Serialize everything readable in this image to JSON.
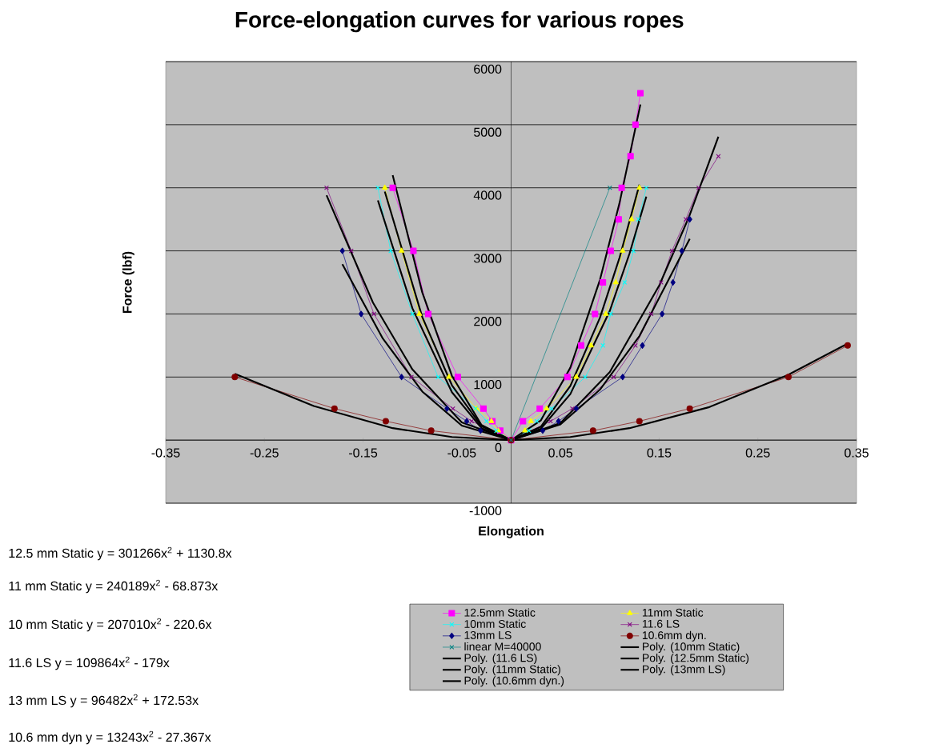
{
  "chart_data": {
    "type": "line",
    "title": "Force-elongation curves for various ropes",
    "xlabel": "Elongation",
    "ylabel": "Force (lbf)",
    "xlim": [
      -0.35,
      0.35
    ],
    "xticks": [
      -0.35,
      -0.25,
      -0.15,
      -0.05,
      0.05,
      0.15,
      0.25,
      0.35
    ],
    "ylim": [
      -1000,
      6000
    ],
    "yticks": [
      -1000,
      0,
      1000,
      2000,
      3000,
      4000,
      5000,
      6000
    ],
    "grid": "y",
    "legend": "bottom",
    "series": [
      {
        "name": "12.5mm Static",
        "color": "#ff00ff",
        "marker": "square",
        "x": [
          -0.12,
          -0.099,
          -0.084,
          -0.054,
          -0.028,
          -0.019,
          -0.011,
          0,
          0.012,
          0.029,
          0.057,
          0.071,
          0.085,
          0.093,
          0.101,
          0.109,
          0.112,
          0.121,
          0.126,
          0.131
        ],
        "values": [
          4000,
          3000,
          2000,
          1000,
          500,
          300,
          150,
          0,
          300,
          500,
          1000,
          1500,
          2000,
          2500,
          3000,
          3500,
          4000,
          4500,
          5000,
          5500
        ]
      },
      {
        "name": "11mm Static",
        "color": "#ffff00",
        "marker": "triangle",
        "x": [
          -0.128,
          -0.111,
          -0.093,
          -0.063,
          -0.035,
          -0.02,
          -0.013,
          0,
          0.014,
          0.02,
          0.036,
          0.066,
          0.081,
          0.096,
          0.106,
          0.113,
          0.122,
          0.13
        ],
        "values": [
          4000,
          3000,
          2000,
          1000,
          500,
          300,
          150,
          0,
          150,
          300,
          500,
          1000,
          1500,
          2000,
          2500,
          3000,
          3500,
          4000
        ]
      },
      {
        "name": "10mm Static",
        "color": "#00ffff",
        "marker": "cross",
        "x": [
          -0.135,
          -0.122,
          -0.1,
          -0.074,
          -0.036,
          -0.025,
          -0.015,
          0,
          0.018,
          0.026,
          0.041,
          0.075,
          0.093,
          0.101,
          0.115,
          0.124,
          0.129,
          0.137
        ],
        "values": [
          4000,
          3000,
          2000,
          1000,
          500,
          300,
          150,
          0,
          150,
          300,
          500,
          1000,
          1500,
          2000,
          2500,
          3000,
          3500,
          4000
        ]
      },
      {
        "name": "11.6 LS",
        "color": "#800080",
        "marker": "cross",
        "x": [
          -0.187,
          -0.162,
          -0.139,
          -0.101,
          -0.059,
          -0.04,
          0,
          0.04,
          0.062,
          0.104,
          0.126,
          0.142,
          0.152,
          0.163,
          0.177,
          0.19,
          0.21
        ],
        "values": [
          4000,
          3000,
          2000,
          1000,
          500,
          300,
          0,
          300,
          500,
          1000,
          1500,
          2000,
          2500,
          3000,
          3500,
          4000,
          4500
        ]
      },
      {
        "name": "13mm LS",
        "color": "#000080",
        "marker": "diamond",
        "x": [
          -0.171,
          -0.152,
          -0.111,
          -0.065,
          -0.045,
          -0.031,
          0,
          0.032,
          0.048,
          0.066,
          0.113,
          0.133,
          0.153,
          0.164,
          0.173,
          0.181
        ],
        "values": [
          3000,
          2000,
          1000,
          500,
          300,
          150,
          0,
          150,
          300,
          500,
          1000,
          1500,
          2000,
          2500,
          3000,
          3500
        ]
      },
      {
        "name": "10.6mm dyn.",
        "color": "#800000",
        "marker": "circle",
        "x": [
          -0.28,
          -0.179,
          -0.127,
          -0.081,
          0,
          0.083,
          0.13,
          0.181,
          0.281,
          0.341
        ],
        "values": [
          1000,
          500,
          300,
          150,
          0,
          150,
          300,
          500,
          1000,
          1500
        ]
      },
      {
        "name": "linear M=40000",
        "color": "#008080",
        "marker": "cross",
        "x": [
          0,
          0.1
        ],
        "values": [
          0,
          4000
        ]
      },
      {
        "name": "Poly. (10mm Static)",
        "color": "#000000",
        "marker": "none",
        "x": [
          -0.135,
          -0.1,
          -0.06,
          -0.03,
          0,
          0.03,
          0.06,
          0.1,
          0.12,
          0.137
        ],
        "values": [
          3800,
          2090,
          760,
          190,
          0,
          180,
          730,
          2050,
          2960,
          3860
        ]
      },
      {
        "name": "Poly. (11.6 LS)",
        "color": "#000000",
        "marker": "none",
        "x": [
          -0.187,
          -0.14,
          -0.1,
          -0.05,
          0,
          0.05,
          0.1,
          0.15,
          0.18,
          0.21
        ],
        "values": [
          3880,
          2180,
          1120,
          280,
          0,
          270,
          1080,
          2450,
          3530,
          4810
        ]
      },
      {
        "name": "Poly. (12.5mm Static)",
        "color": "#000000",
        "marker": "none",
        "x": [
          -0.12,
          -0.09,
          -0.06,
          -0.03,
          0,
          0.03,
          0.06,
          0.09,
          0.11,
          0.131
        ],
        "values": [
          4200,
          2340,
          1020,
          240,
          0,
          310,
          1150,
          2540,
          3770,
          5320
        ]
      },
      {
        "name": "Poly. (11mm Static)",
        "color": "#000000",
        "marker": "none",
        "x": [
          -0.128,
          -0.09,
          -0.06,
          -0.03,
          0,
          0.03,
          0.06,
          0.09,
          0.11,
          0.13
        ],
        "values": [
          3940,
          1950,
          870,
          220,
          0,
          210,
          860,
          1940,
          2900,
          4050
        ]
      },
      {
        "name": "Poly. (13mm LS)",
        "color": "#000000",
        "marker": "none",
        "x": [
          -0.171,
          -0.13,
          -0.09,
          -0.05,
          0,
          0.05,
          0.09,
          0.13,
          0.181
        ],
        "values": [
          2790,
          1610,
          770,
          230,
          0,
          250,
          800,
          1650,
          3190
        ]
      },
      {
        "name": "Poly. (10.6mm dyn.)",
        "color": "#000000",
        "marker": "none",
        "x": [
          -0.28,
          -0.2,
          -0.12,
          -0.06,
          0,
          0.06,
          0.12,
          0.2,
          0.28,
          0.341
        ],
        "values": [
          1050,
          540,
          190,
          50,
          0,
          50,
          190,
          520,
          1030,
          1530
        ]
      }
    ],
    "annotations": [
      "12.5 mm Static y = 301266x$^{2}$ + 1130.8x",
      "11 mm Static y = 240189x$^{2}$ - 68.873x",
      "10 mm Static y = 207010x$^{2}$ - 220.6x",
      "11.6 LS y = 109864x$^{2}$ - 179x",
      "13 mm LS y = 96482x$^{2}$ + 172.53x",
      "10.6 mm dyn y = 13243x$^{2}$ - 27.367x"
    ]
  }
}
